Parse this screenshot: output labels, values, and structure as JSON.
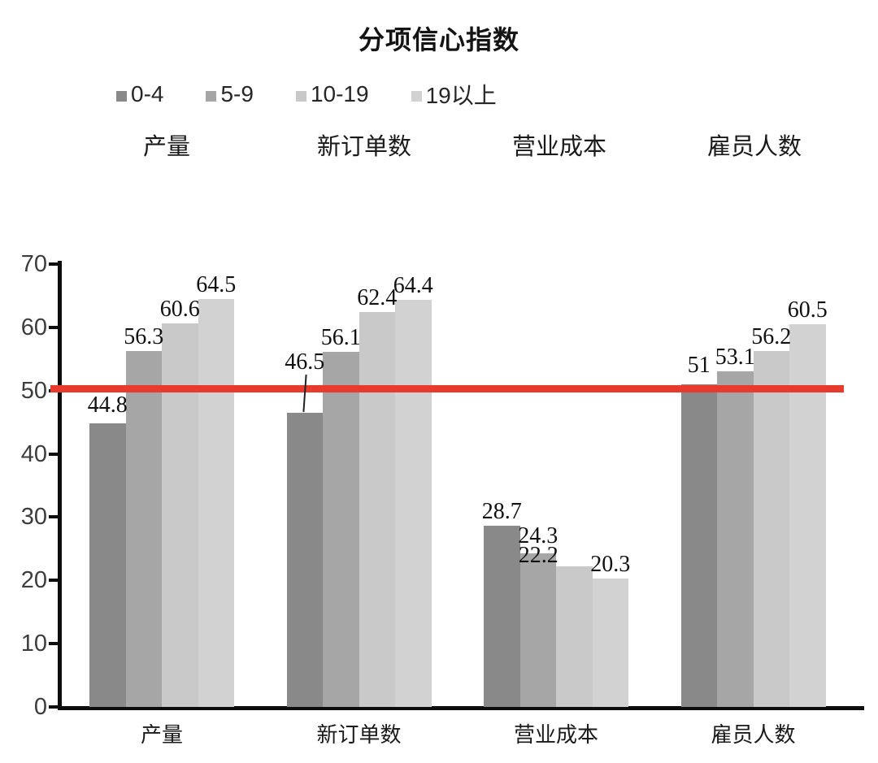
{
  "title": "分项信心指数",
  "legend": {
    "items": [
      {
        "label": "0-4",
        "color": "#898989"
      },
      {
        "label": "5-9",
        "color": "#A6A6A6"
      },
      {
        "label": "10-19",
        "color": "#C9C9C9"
      },
      {
        "label": "19以上",
        "color": "#D2D2D2"
      }
    ]
  },
  "header_categories": [
    "产量",
    "新订单数",
    "营业成本",
    "雇员人数"
  ],
  "chart_data": {
    "type": "bar",
    "title": "分项信心指数",
    "categories": [
      "产量",
      "新订单数",
      "营业成本",
      "雇员人数"
    ],
    "series": [
      {
        "name": "0-4",
        "color": "#898989",
        "values": [
          44.8,
          46.5,
          28.7,
          51
        ]
      },
      {
        "name": "5-9",
        "color": "#A6A6A6",
        "values": [
          56.3,
          56.1,
          24.3,
          53.1
        ]
      },
      {
        "name": "10-19",
        "color": "#C9C9C9",
        "values": [
          60.6,
          62.4,
          22.2,
          56.2
        ]
      },
      {
        "name": "19以上",
        "color": "#D2D2D2",
        "values": [
          64.5,
          64.4,
          20.3,
          60.5
        ]
      }
    ],
    "ylim": [
      0,
      70
    ],
    "y_ticks": [
      0,
      10,
      20,
      30,
      40,
      50,
      60,
      70
    ],
    "grid": false,
    "data_labels": true,
    "legend_position": "top-left",
    "axis_color": "#0d0d0d",
    "reference_line": {
      "value": 50.3,
      "color": "#E73C2D"
    },
    "label_adjust": {
      "0-0": {
        "dy": -5
      },
      "0-1": {
        "dy": -45,
        "leader": true
      },
      "1-2": {
        "dy": -4
      },
      "2-2": {
        "dx": -44,
        "dy": 4
      },
      "0-3": {
        "dy": -6
      }
    }
  }
}
